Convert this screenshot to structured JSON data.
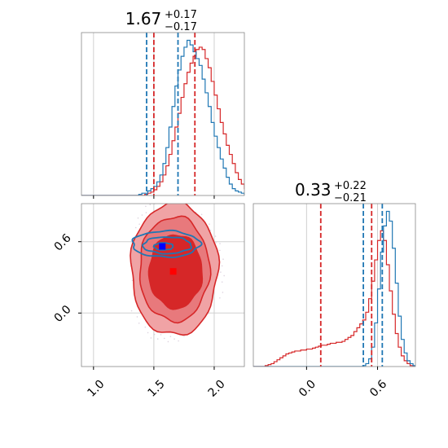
{
  "colors": {
    "blue": "#1f77b4",
    "red": "#d62728",
    "red_light": "#f0a3a5",
    "red_mid": "#e8797c",
    "grid": "#d0d0d0",
    "marker_blue": "#0000ff",
    "marker_red": "#ff0000"
  },
  "chart_data": {
    "type": "corner",
    "parameters": [
      {
        "title_value": "1.67",
        "title_plus": "+0.17",
        "title_minus": "−0.17",
        "range": [
          0.9,
          2.25
        ],
        "ticks": [
          1.0,
          1.5,
          2.0
        ],
        "tick_labels": [
          "1.0",
          "1.5",
          "2.0"
        ]
      },
      {
        "title_value": "0.33",
        "title_plus": "+0.22",
        "title_minus": "−0.21",
        "range": [
          -0.45,
          0.92
        ],
        "ticks": [
          0.0,
          0.6
        ],
        "tick_labels": [
          "0.0",
          "0.6"
        ]
      }
    ],
    "histograms": {
      "param1": {
        "bin_start": 0.9,
        "bin_width": 0.025,
        "blue": [
          0,
          0,
          0,
          0,
          0,
          0,
          0,
          0,
          0,
          0,
          0,
          0,
          0,
          0,
          0,
          0,
          0,
          0,
          0,
          1,
          2,
          2,
          4,
          6,
          8,
          12,
          18,
          28,
          42,
          60,
          78,
          96,
          110,
          122,
          130,
          136,
          132,
          126,
          120,
          114,
          102,
          90,
          78,
          64,
          52,
          42,
          32,
          24,
          16,
          10,
          6,
          4,
          3,
          2,
          1,
          0,
          0,
          0,
          0
        ],
        "red": [
          0,
          0,
          0,
          0,
          0,
          0,
          0,
          0,
          0,
          0,
          0,
          0,
          0,
          0,
          0,
          0,
          0,
          0,
          0,
          0,
          0,
          1,
          2,
          3,
          5,
          8,
          12,
          18,
          26,
          36,
          48,
          60,
          72,
          86,
          98,
          108,
          116,
          122,
          128,
          130,
          128,
          120,
          112,
          100,
          88,
          76,
          64,
          54,
          44,
          36,
          28,
          20,
          14,
          10,
          6,
          4,
          2,
          1,
          0
        ]
      },
      "param2": {
        "bin_start": -0.45,
        "bin_width": 0.025,
        "blue": [
          0,
          0,
          0,
          0,
          0,
          0,
          0,
          0,
          0,
          0,
          0,
          0,
          0,
          0,
          0,
          0,
          0,
          0,
          0,
          0,
          0,
          0,
          0,
          0,
          0,
          0,
          0,
          0,
          0,
          0,
          0,
          0,
          0,
          0,
          0,
          0,
          0,
          1,
          3,
          8,
          20,
          45,
          80,
          118,
          145,
          160,
          150,
          122,
          86,
          52,
          28,
          14,
          6,
          3,
          1,
          0
        ],
        "red": [
          0,
          0,
          0,
          0,
          1,
          2,
          3,
          5,
          7,
          9,
          11,
          13,
          14,
          15,
          16,
          16,
          17,
          17,
          18,
          18,
          19,
          20,
          21,
          22,
          22,
          23,
          24,
          24,
          25,
          25,
          26,
          28,
          30,
          32,
          36,
          40,
          44,
          48,
          56,
          70,
          88,
          110,
          130,
          140,
          130,
          105,
          78,
          54,
          34,
          20,
          11,
          6,
          3,
          1,
          0,
          0
        ]
      }
    },
    "quantile_lines": {
      "param1": {
        "blue": [
          1.44,
          1.7
        ],
        "red": [
          1.5,
          1.84
        ]
      },
      "param2": {
        "blue": [
          0.48,
          0.64
        ],
        "red": [
          0.12,
          0.55
        ]
      }
    },
    "points": {
      "blue": {
        "x": 1.57,
        "y": 0.56
      },
      "red": {
        "x": 1.66,
        "y": 0.35
      }
    },
    "contours": {
      "red": [
        {
          "cx": 1.67,
          "cy": 0.37,
          "rx": 0.36,
          "ry": 0.56
        },
        {
          "cx": 1.67,
          "cy": 0.37,
          "rx": 0.29,
          "ry": 0.44
        },
        {
          "cx": 1.68,
          "cy": 0.35,
          "rx": 0.22,
          "ry": 0.31
        }
      ],
      "blue": [
        {
          "cx": 1.6,
          "cy": 0.58,
          "rx": 0.28,
          "ry": 0.11
        },
        {
          "cx": 1.61,
          "cy": 0.57,
          "rx": 0.2,
          "ry": 0.07
        },
        {
          "cx": 1.58,
          "cy": 0.56,
          "rx": 0.08,
          "ry": 0.03
        }
      ]
    },
    "grid": true
  }
}
